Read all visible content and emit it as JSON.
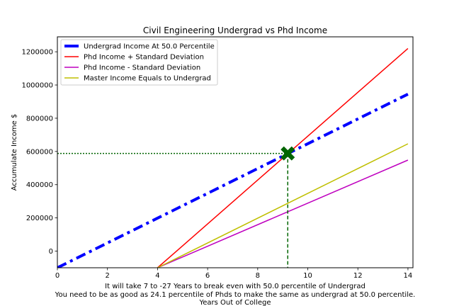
{
  "chart_data": {
    "type": "line",
    "title": "Civil Engineering Undergrad vs Phd Income",
    "xlabel_lines": [
      "It will take 7 to -27 Years to break even with 50.0 percentile of Undergrad",
      "You need to be as good as 24.1 percentile of Phds to make the same as undergrad at 50.0 percentile.",
      "Years Out of College"
    ],
    "ylabel": "Accumulate Income $",
    "xlim": [
      0,
      14.2
    ],
    "ylim": [
      -100000,
      1290000
    ],
    "xticks": [
      0,
      2,
      4,
      6,
      8,
      10,
      12,
      14
    ],
    "xtick_labels": [
      "0",
      "2",
      "4",
      "6",
      "8",
      "10",
      "12",
      "14"
    ],
    "yticks": [
      0,
      200000,
      400000,
      600000,
      800000,
      1000000,
      1200000
    ],
    "ytick_labels": [
      "0",
      "200000",
      "400000",
      "600000",
      "800000",
      "1000000",
      "1200000"
    ],
    "legend_position": "top-left",
    "series": [
      {
        "name": "Undergrad Income At 50.0 Percentile",
        "color": "#0000ff",
        "style": "dashdot",
        "width": 4,
        "x": [
          0,
          14
        ],
        "y": [
          -100000,
          945000
        ]
      },
      {
        "name": "Phd Income + Standard Deviation",
        "color": "#ff0000",
        "style": "solid",
        "width": 1.5,
        "x": [
          4,
          14
        ],
        "y": [
          -100000,
          1220000
        ]
      },
      {
        "name": "Phd Income - Standard Deviation",
        "color": "#bf00bf",
        "style": "solid",
        "width": 1.5,
        "x": [
          4,
          14
        ],
        "y": [
          -100000,
          548000
        ]
      },
      {
        "name": "Master Income Equals to Undergrad",
        "color": "#bfbf00",
        "style": "solid",
        "width": 1.5,
        "x": [
          4,
          14
        ],
        "y": [
          -100000,
          646000
        ]
      }
    ],
    "break_even": {
      "x": 9.2,
      "y": 588000,
      "color": "#006400",
      "marker": "X"
    }
  }
}
